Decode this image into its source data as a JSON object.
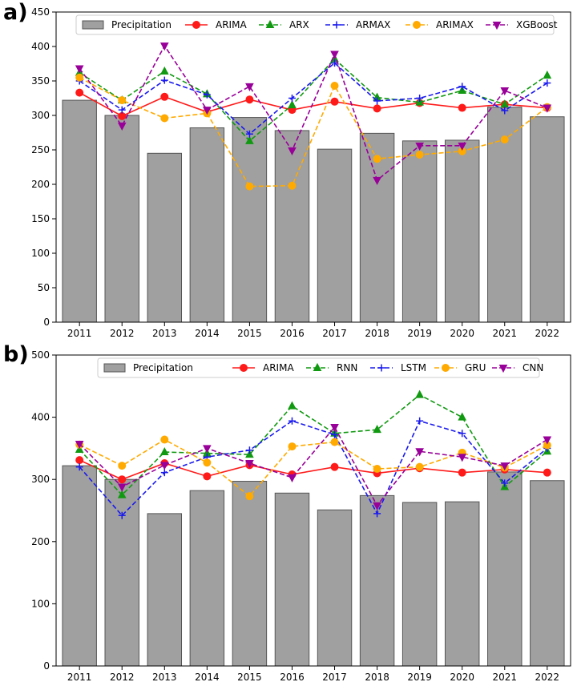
{
  "chart_data": [
    {
      "type": "bar+line",
      "panel_label": "a)",
      "categories": [
        "2011",
        "2012",
        "2013",
        "2014",
        "2015",
        "2016",
        "2017",
        "2018",
        "2019",
        "2020",
        "2021",
        "2022"
      ],
      "ylim": [
        0,
        450
      ],
      "yticks": [
        0,
        50,
        100,
        150,
        200,
        250,
        300,
        350,
        400,
        450
      ],
      "grid": false,
      "legend_position": "top",
      "bar": {
        "name": "Precipitation",
        "color": "#a0a0a0",
        "values": [
          322,
          300,
          245,
          282,
          297,
          278,
          251,
          274,
          263,
          264,
          312,
          298
        ]
      },
      "series": [
        {
          "name": "ARIMA",
          "color": "#ff1a1a",
          "style": "solid",
          "marker": "circle",
          "values": [
            333,
            299,
            327,
            305,
            323,
            308,
            320,
            310,
            318,
            311,
            316,
            311
          ]
        },
        {
          "name": "ARX",
          "color": "#119911",
          "style": "dashed",
          "marker": "triangle-up",
          "values": [
            362,
            322,
            364,
            331,
            263,
            315,
            382,
            326,
            319,
            336,
            316,
            358
          ]
        },
        {
          "name": "ARMAX",
          "color": "#1a1aee",
          "style": "dashed",
          "marker": "plus",
          "values": [
            350,
            308,
            351,
            330,
            273,
            325,
            376,
            321,
            325,
            342,
            307,
            347
          ]
        },
        {
          "name": "ARIMAX",
          "color": "#ffaa00",
          "style": "dashed",
          "marker": "circle",
          "values": [
            355,
            322,
            296,
            303,
            197,
            198,
            343,
            237,
            243,
            248,
            265,
            312
          ]
        },
        {
          "name": "XGBoost",
          "color": "#990099",
          "style": "dashed",
          "marker": "triangle-down",
          "values": [
            368,
            285,
            401,
            308,
            342,
            249,
            389,
            206,
            256,
            256,
            336,
            311
          ]
        }
      ]
    },
    {
      "type": "bar+line",
      "panel_label": "b)",
      "categories": [
        "2011",
        "2012",
        "2013",
        "2014",
        "2015",
        "2016",
        "2017",
        "2018",
        "2019",
        "2020",
        "2021",
        "2022"
      ],
      "ylim": [
        0,
        500
      ],
      "yticks": [
        0,
        100,
        200,
        300,
        400,
        500
      ],
      "grid": false,
      "legend_position": "top",
      "bar": {
        "name": "Precipitation",
        "color": "#a0a0a0",
        "values": [
          322,
          300,
          245,
          282,
          297,
          278,
          251,
          274,
          263,
          264,
          312,
          298
        ]
      },
      "series": [
        {
          "name": "ARIMA",
          "color": "#ff1a1a",
          "style": "solid",
          "marker": "circle",
          "values": [
            331,
            300,
            326,
            305,
            323,
            308,
            320,
            310,
            318,
            311,
            316,
            311
          ]
        },
        {
          "name": "RNN",
          "color": "#119911",
          "style": "dashed",
          "marker": "triangle-up",
          "values": [
            348,
            275,
            344,
            342,
            340,
            418,
            374,
            380,
            436,
            400,
            288,
            345
          ]
        },
        {
          "name": "LSTM",
          "color": "#1a1aee",
          "style": "dashed",
          "marker": "plus",
          "values": [
            320,
            242,
            311,
            336,
            347,
            394,
            372,
            245,
            394,
            374,
            294,
            350
          ]
        },
        {
          "name": "GRU",
          "color": "#ffaa00",
          "style": "dashed",
          "marker": "circle",
          "values": [
            356,
            322,
            364,
            327,
            273,
            353,
            360,
            317,
            320,
            343,
            319,
            355
          ]
        },
        {
          "name": "CNN",
          "color": "#990099",
          "style": "dashed",
          "marker": "triangle-down",
          "values": [
            357,
            288,
            323,
            350,
            326,
            303,
            384,
            258,
            345,
            336,
            322,
            364
          ]
        }
      ]
    }
  ]
}
